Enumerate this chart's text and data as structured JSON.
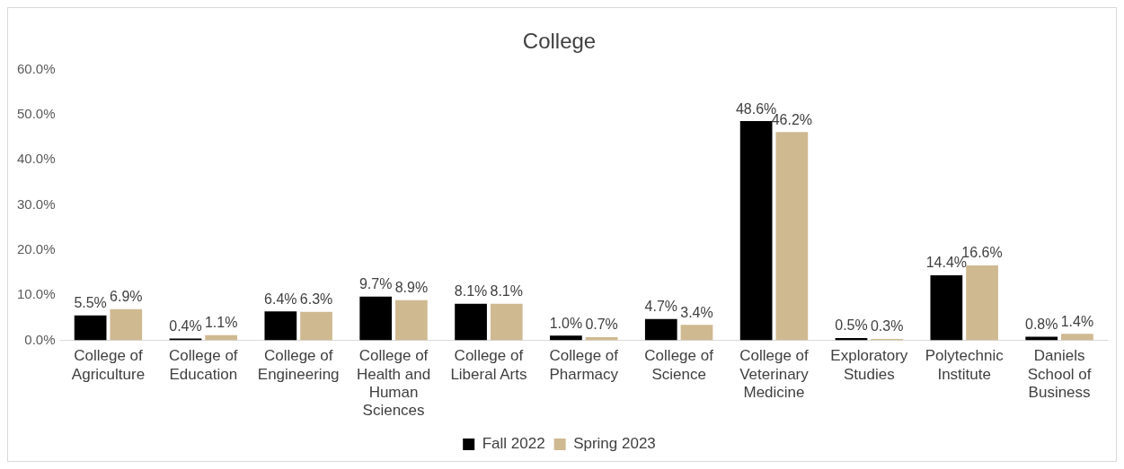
{
  "chart_data": {
    "type": "bar",
    "title": "College",
    "categories": [
      "College of Agriculture",
      "College of Education",
      "College of Engineering",
      "College of Health and Human Sciences",
      "College of Liberal Arts",
      "College of Pharmacy",
      "College of Science",
      "College of Veterinary Medicine",
      "Exploratory Studies",
      "Polytechnic Institute",
      "Daniels School of Business"
    ],
    "series": [
      {
        "name": "Fall 2022",
        "color": "#000000",
        "values": [
          5.5,
          0.4,
          6.4,
          9.7,
          8.1,
          1.0,
          4.7,
          48.6,
          0.5,
          14.4,
          0.8
        ],
        "value_labels": [
          "5.5%",
          "0.4%",
          "6.4%",
          "9.7%",
          "8.1%",
          "1.0%",
          "4.7%",
          "48.6%",
          "0.5%",
          "14.4%",
          "0.8%"
        ]
      },
      {
        "name": "Spring 2023",
        "color": "#cfb991",
        "values": [
          6.9,
          1.1,
          6.3,
          8.9,
          8.1,
          0.7,
          3.4,
          46.2,
          0.3,
          16.6,
          1.4
        ],
        "value_labels": [
          "6.9%",
          "1.1%",
          "6.3%",
          "8.9%",
          "8.1%",
          "0.7%",
          "3.4%",
          "46.2%",
          "0.3%",
          "16.6%",
          "1.4%"
        ]
      }
    ],
    "ylim": [
      0,
      60
    ],
    "yticks": [
      {
        "value": 0,
        "label": "0.0%"
      },
      {
        "value": 10,
        "label": "10.0%"
      },
      {
        "value": 20,
        "label": "20.0%"
      },
      {
        "value": 30,
        "label": "30.0%"
      },
      {
        "value": 40,
        "label": "40.0%"
      },
      {
        "value": 50,
        "label": "50.0%"
      },
      {
        "value": 60,
        "label": "60.0%"
      }
    ],
    "grid": false,
    "legend": "bottom"
  }
}
